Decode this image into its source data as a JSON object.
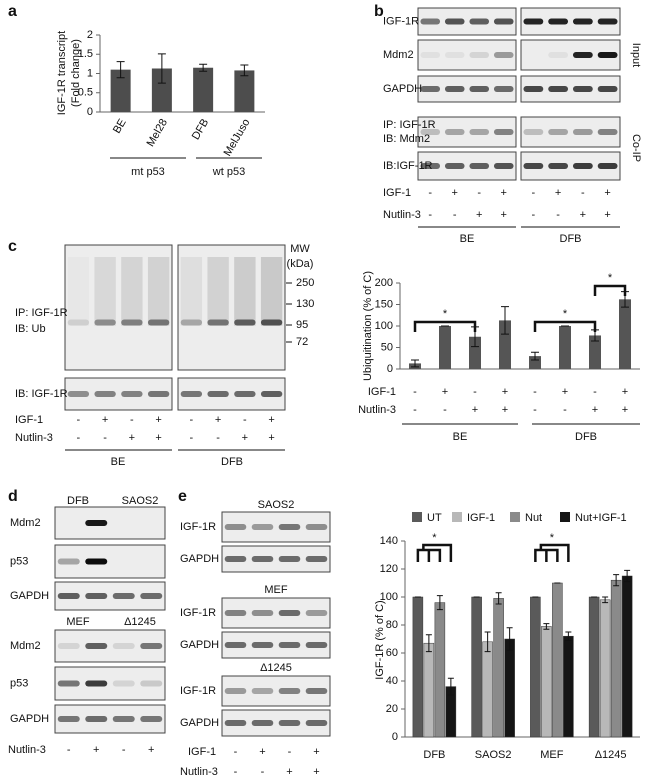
{
  "panel_labels": [
    "a",
    "b",
    "c",
    "d",
    "e"
  ],
  "chart_data": [
    {
      "type": "bar",
      "ylabel": [
        "IGF-1R transcript",
        "(Fold change)"
      ],
      "categories": [
        "BE",
        "Mel28",
        "DFB",
        "MelJuso"
      ],
      "values": [
        1.1,
        1.13,
        1.15,
        1.08
      ],
      "errors": [
        0.21,
        0.38,
        0.09,
        0.14
      ],
      "color": "#4d4d4d",
      "ylim": [
        0,
        2
      ],
      "yticks": [
        0,
        0.5,
        1,
        1.5,
        2
      ],
      "groups": [
        "mt p53",
        "wt p53"
      ]
    },
    {
      "type": "bar",
      "ylabel": "Ubiquitination (% of C)",
      "values": [
        13,
        100,
        75,
        113,
        30,
        100,
        78,
        162
      ],
      "errors": [
        8,
        0,
        23,
        32,
        9,
        0,
        13,
        18
      ],
      "color": "#555555",
      "ylim": [
        0,
        200
      ],
      "yticks": [
        0,
        50,
        100,
        150,
        200
      ],
      "conditions": [
        {
          "name": "IGF-1",
          "signs": [
            "-",
            "+",
            "-",
            "+",
            "-",
            "+",
            "-",
            "+"
          ]
        },
        {
          "name": "Nutlin-3",
          "signs": [
            "-",
            "-",
            "+",
            "+",
            "-",
            "-",
            "+",
            "+"
          ]
        }
      ],
      "groups": [
        "BE",
        "DFB"
      ],
      "annotations": [
        "*",
        "*",
        "*"
      ]
    },
    {
      "type": "grouped_bar",
      "ylabel": "IGF-1R (% of C)",
      "categories": [
        "DFB",
        "SAOS2",
        "MEF",
        "Δ1245"
      ],
      "series": [
        {
          "name": "UT",
          "color": "#5a5a5a",
          "values": [
            100,
            100,
            100,
            100
          ],
          "errors": [
            0,
            0,
            0,
            0
          ]
        },
        {
          "name": "IGF-1",
          "color": "#b8b8b8",
          "values": [
            67,
            68,
            79,
            98
          ],
          "errors": [
            6,
            7,
            2,
            2
          ]
        },
        {
          "name": "Nut",
          "color": "#8a8a8a",
          "values": [
            96,
            99,
            110,
            112
          ],
          "errors": [
            5,
            4,
            0,
            4
          ]
        },
        {
          "name": "Nut+IGF-1",
          "color": "#151515",
          "values": [
            36,
            70,
            72,
            115
          ],
          "errors": [
            6,
            8,
            3,
            4
          ]
        }
      ],
      "ylim": [
        0,
        140
      ],
      "yticks": [
        0,
        20,
        40,
        60,
        80,
        100,
        120,
        140
      ],
      "legend": "top",
      "annotations": [
        "*",
        "*"
      ]
    }
  ],
  "blots": {
    "b": {
      "rows": [
        "IGF-1R",
        "Mdm2",
        "GAPDH"
      ],
      "coip": [
        "IP: IGF-1R",
        "IB: Mdm2"
      ],
      "ib": "IB:IGF-1R",
      "side": [
        "Input",
        "Co-IP"
      ],
      "conditions": [
        {
          "name": "IGF-1",
          "signs": [
            "-",
            "+",
            "-",
            "+",
            "-",
            "+",
            "-",
            "+"
          ]
        },
        {
          "name": "Nutlin-3",
          "signs": [
            "-",
            "-",
            "+",
            "+",
            "-",
            "-",
            "+",
            "+"
          ]
        }
      ],
      "groups": [
        "BE",
        "DFB"
      ]
    },
    "c": {
      "mw_title": [
        "MW",
        "(kDa)"
      ],
      "mw": [
        250,
        130,
        95,
        72
      ],
      "ip": [
        "IP: IGF-1R",
        "IB: Ub"
      ],
      "ib": "IB: IGF-1R",
      "conditions": [
        {
          "name": "IGF-1",
          "signs": [
            "-",
            "+",
            "-",
            "+",
            "-",
            "+",
            "-",
            "+"
          ]
        },
        {
          "name": "Nutlin-3",
          "signs": [
            "-",
            "-",
            "+",
            "+",
            "-",
            "-",
            "+",
            "+"
          ]
        }
      ],
      "groups": [
        "BE",
        "DFB"
      ]
    },
    "d": {
      "top_lanes": [
        "DFB",
        "SAOS2"
      ],
      "top_rows": [
        "Mdm2",
        "p53",
        "GAPDH"
      ],
      "bottom_lanes": [
        "MEF",
        "Δ1245"
      ],
      "bottom_rows": [
        "Mdm2",
        "p53",
        "GAPDH"
      ],
      "condition": {
        "name": "Nutlin-3",
        "signs": [
          "-",
          "+",
          "-",
          "+"
        ]
      }
    },
    "e": {
      "sections": [
        {
          "title": "SAOS2",
          "rows": [
            "IGF-1R",
            "GAPDH"
          ]
        },
        {
          "title": "MEF",
          "rows": [
            "IGF-1R",
            "GAPDH"
          ]
        },
        {
          "title": "Δ1245",
          "rows": [
            "IGF-1R",
            "GAPDH"
          ]
        }
      ],
      "conditions": [
        {
          "name": "IGF-1",
          "signs": [
            "-",
            "+",
            "-",
            "+"
          ]
        },
        {
          "name": "Nutlin-3",
          "signs": [
            "-",
            "-",
            "+",
            "+"
          ]
        }
      ]
    }
  }
}
